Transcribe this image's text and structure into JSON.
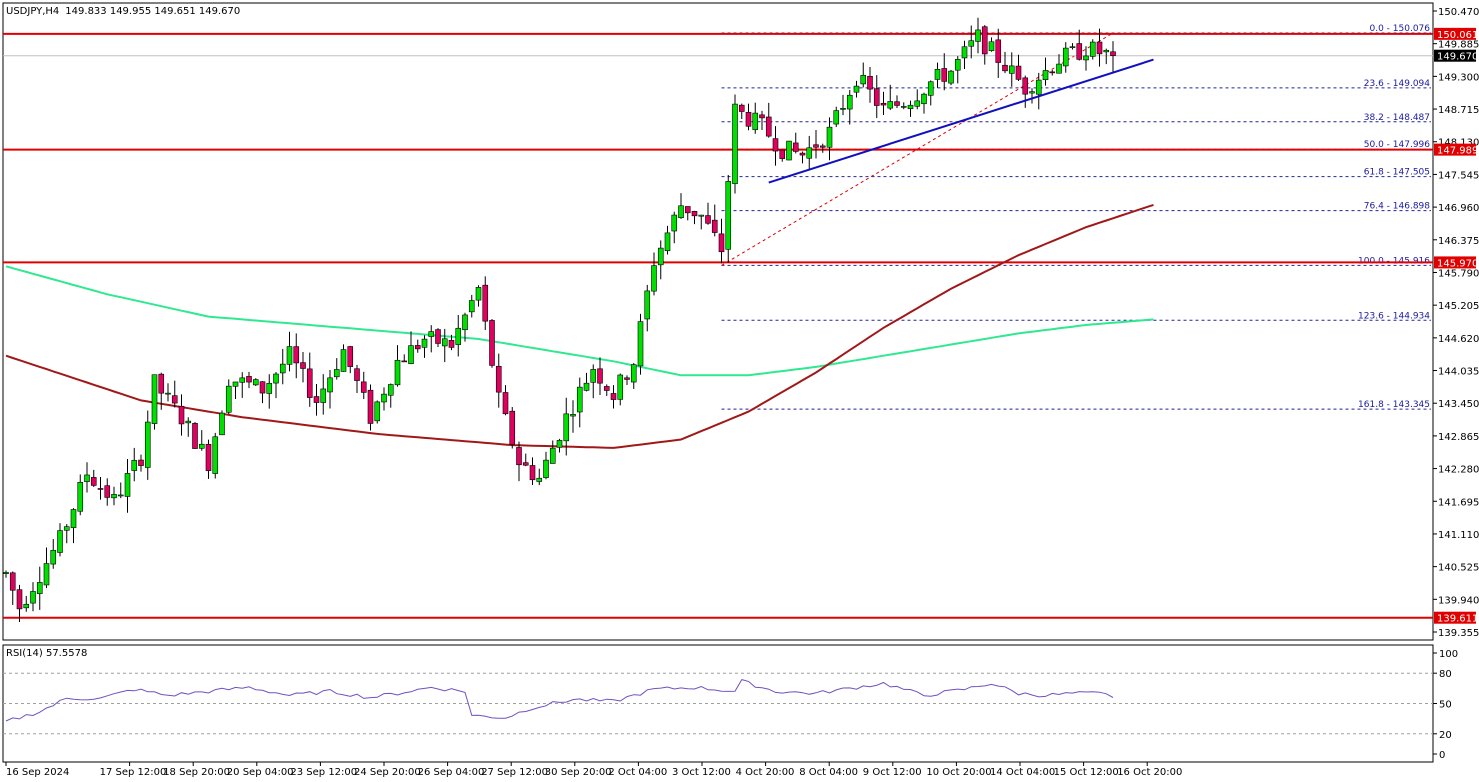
{
  "header": {
    "symbol": "USDJPY,H4",
    "ohlc": "149.833 149.955 149.651 149.670"
  },
  "rsi_header": "RSI(14) 57.5578",
  "colors": {
    "bull": "#00e000",
    "bear": "#e00060",
    "wick": "#000000",
    "ma_red": "#a01818",
    "ma_green": "#30e890",
    "trendline": "#1010c0",
    "hline": "#e00000",
    "fib": "#2020a0",
    "rsi": "#7050c0"
  },
  "chart_data": {
    "type": "candlestick",
    "price_axis": {
      "ylim": [
        139.355,
        150.47
      ],
      "ticks": [
        "150.470",
        "149.885",
        "149.300",
        "148.715",
        "148.130",
        "147.545",
        "146.960",
        "146.375",
        "145.790",
        "145.205",
        "144.620",
        "144.035",
        "143.450",
        "142.865",
        "142.280",
        "141.695",
        "141.110",
        "140.525",
        "139.940",
        "139.355"
      ]
    },
    "time_labels": [
      "16 Sep 2024",
      "17 Sep 12:00",
      "18 Sep 20:00",
      "20 Sep 04:00",
      "23 Sep 12:00",
      "24 Sep 20:00",
      "26 Sep 04:00",
      "27 Sep 12:00",
      "30 Sep 20:00",
      "2 Oct 04:00",
      "3 Oct 12:00",
      "4 Oct 20:00",
      "8 Oct 04:00",
      "9 Oct 12:00",
      "10 Oct 20:00",
      "14 Oct 04:00",
      "15 Oct 12:00",
      "16 Oct 20:00"
    ],
    "candle_count": 168,
    "anchors": [
      [
        0,
        140.4
      ],
      [
        2,
        139.8
      ],
      [
        8,
        141.0
      ],
      [
        12,
        142.2
      ],
      [
        16,
        141.7
      ],
      [
        20,
        142.5
      ],
      [
        22,
        143.8
      ],
      [
        26,
        143.2
      ],
      [
        30,
        142.4
      ],
      [
        33,
        143.9
      ],
      [
        38,
        143.7
      ],
      [
        42,
        144.3
      ],
      [
        46,
        143.5
      ],
      [
        50,
        144.4
      ],
      [
        54,
        143.2
      ],
      [
        58,
        144.2
      ],
      [
        62,
        144.6
      ],
      [
        66,
        144.5
      ],
      [
        70,
        145.5
      ],
      [
        73,
        143.5
      ],
      [
        76,
        142.4
      ],
      [
        79,
        142.1
      ],
      [
        83,
        143.2
      ],
      [
        87,
        144.1
      ],
      [
        90,
        143.6
      ],
      [
        93,
        144.2
      ],
      [
        96,
        146.0
      ],
      [
        100,
        147.0
      ],
      [
        103,
        146.8
      ],
      [
        106,
        146.2
      ],
      [
        108,
        148.7
      ],
      [
        112,
        148.4
      ],
      [
        115,
        148.0
      ],
      [
        118,
        147.9
      ],
      [
        122,
        148.3
      ],
      [
        126,
        149.3
      ],
      [
        130,
        148.7
      ],
      [
        134,
        148.9
      ],
      [
        137,
        149.2
      ],
      [
        140,
        149.4
      ],
      [
        144,
        150.0
      ],
      [
        148,
        149.5
      ],
      [
        151,
        149.1
      ],
      [
        156,
        149.6
      ],
      [
        160,
        149.8
      ],
      [
        163,
        149.7
      ],
      [
        164,
        149.67
      ]
    ],
    "hlines": [
      150.061,
      147.989,
      145.97,
      139.611
    ],
    "current_price": 149.67,
    "fibonacci": {
      "levels": [
        {
          "label": "0.0 - 150.076",
          "price": 150.076
        },
        {
          "label": "23.6 - 149.094",
          "price": 149.094
        },
        {
          "label": "38.2 - 148.487",
          "price": 148.487
        },
        {
          "label": "50.0 - 147.996",
          "price": 147.996
        },
        {
          "label": "61.8 - 147.505",
          "price": 147.505
        },
        {
          "label": "76.4 - 146.898",
          "price": 146.898
        },
        {
          "label": "100.0 - 145.916",
          "price": 145.916
        },
        {
          "label": "123.6 - 144.934",
          "price": 144.934
        },
        {
          "label": "161.8 - 143.345",
          "price": 143.345
        }
      ],
      "start_index": 106,
      "end_index": 170
    },
    "ma_red": [
      [
        0,
        144.3
      ],
      [
        20,
        143.5
      ],
      [
        35,
        143.2
      ],
      [
        55,
        142.9
      ],
      [
        75,
        142.7
      ],
      [
        90,
        142.65
      ],
      [
        100,
        142.8
      ],
      [
        110,
        143.3
      ],
      [
        120,
        144.0
      ],
      [
        130,
        144.8
      ],
      [
        140,
        145.5
      ],
      [
        150,
        146.1
      ],
      [
        160,
        146.6
      ],
      [
        170,
        147.0
      ]
    ],
    "ma_green": [
      [
        0,
        145.9
      ],
      [
        15,
        145.4
      ],
      [
        30,
        145.0
      ],
      [
        50,
        144.8
      ],
      [
        70,
        144.6
      ],
      [
        90,
        144.2
      ],
      [
        100,
        143.95
      ],
      [
        110,
        143.95
      ],
      [
        120,
        144.1
      ],
      [
        130,
        144.3
      ],
      [
        140,
        144.5
      ],
      [
        150,
        144.7
      ],
      [
        160,
        144.85
      ],
      [
        170,
        144.95
      ]
    ],
    "trendline": [
      [
        113,
        147.4
      ],
      [
        170,
        149.6
      ]
    ],
    "rsi": {
      "ylim": [
        0,
        100
      ],
      "ticks": [
        "100",
        "80",
        "50",
        "20",
        "0"
      ],
      "levels": [
        80,
        50,
        20
      ],
      "anchors": [
        [
          0,
          32
        ],
        [
          5,
          42
        ],
        [
          9,
          55
        ],
        [
          14,
          55
        ],
        [
          19,
          64
        ],
        [
          24,
          58
        ],
        [
          30,
          62
        ],
        [
          36,
          66
        ],
        [
          42,
          58
        ],
        [
          48,
          62
        ],
        [
          54,
          56
        ],
        [
          58,
          60
        ],
        [
          63,
          66
        ],
        [
          68,
          62
        ],
        [
          69,
          38
        ],
        [
          74,
          36
        ],
        [
          78,
          46
        ],
        [
          84,
          54
        ],
        [
          90,
          52
        ],
        [
          96,
          64
        ],
        [
          102,
          66
        ],
        [
          108,
          62
        ],
        [
          109,
          72
        ],
        [
          114,
          62
        ],
        [
          120,
          60
        ],
        [
          126,
          66
        ],
        [
          130,
          70
        ],
        [
          136,
          58
        ],
        [
          142,
          64
        ],
        [
          146,
          70
        ],
        [
          150,
          60
        ],
        [
          154,
          58
        ],
        [
          158,
          60
        ],
        [
          162,
          60
        ],
        [
          164,
          57
        ]
      ]
    }
  }
}
